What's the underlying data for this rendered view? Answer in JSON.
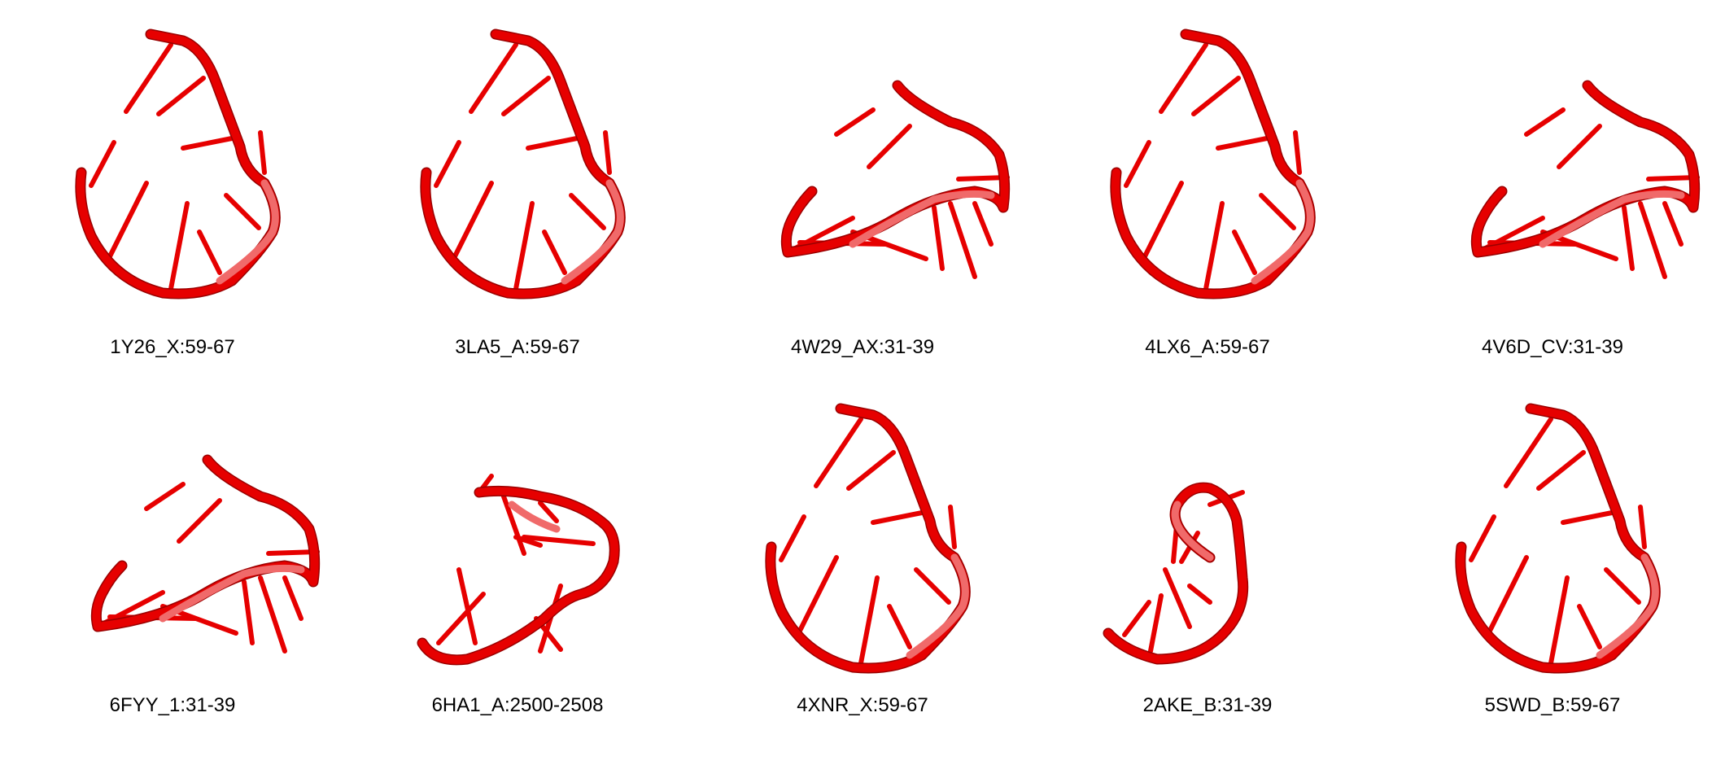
{
  "colors": {
    "background": "#ffffff",
    "strand": "#e60000",
    "strand_light": "#f06a6a",
    "strand_dark": "#9a0000",
    "label": "#000000"
  },
  "structures": [
    {
      "label": "1Y26_X:59-67",
      "shape": "loop"
    },
    {
      "label": "3LA5_A:59-67",
      "shape": "loop"
    },
    {
      "label": "4W29_AX:31-39",
      "shape": "cone"
    },
    {
      "label": "4LX6_A:59-67",
      "shape": "loop"
    },
    {
      "label": "4V6D_CV:31-39",
      "shape": "cone"
    },
    {
      "label": "6FYY_1:31-39",
      "shape": "cone"
    },
    {
      "label": "6HA1_A:2500-2508",
      "shape": "twist"
    },
    {
      "label": "4XNR_X:59-67",
      "shape": "loop"
    },
    {
      "label": "2AKE_B:31-39",
      "shape": "hook"
    },
    {
      "label": "5SWD_B:59-67",
      "shape": "loop"
    }
  ]
}
